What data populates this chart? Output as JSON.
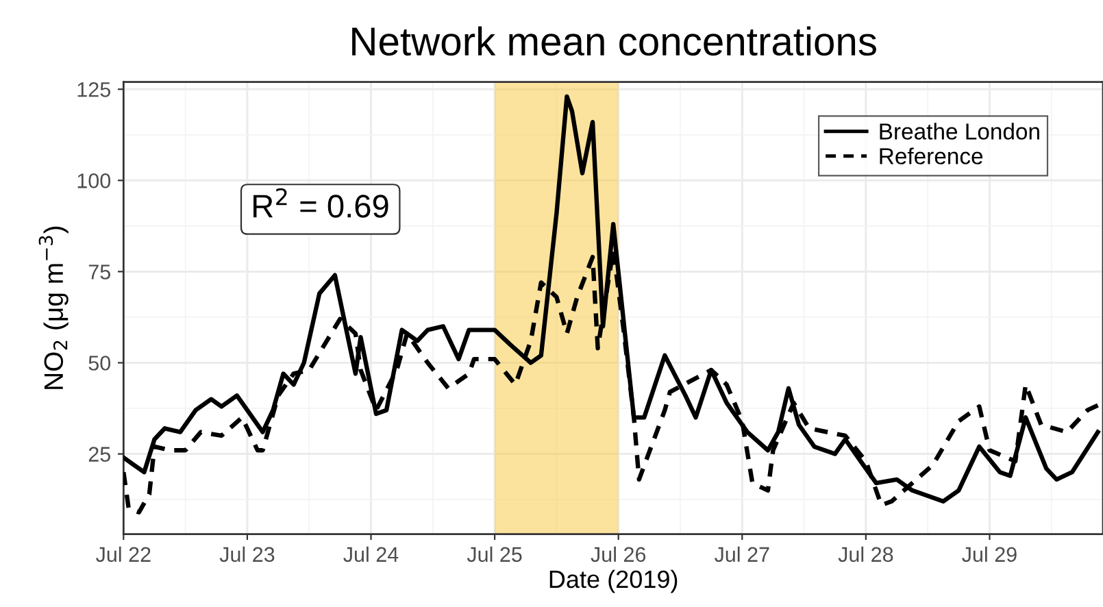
{
  "chart_data": {
    "type": "line",
    "title": "Network mean concentrations",
    "xlabel": "Date (2019)",
    "ylabel": "NO$_{2}$ (μg m$^{−3}$)",
    "annotations": [
      "R$^{2}$ = 0.69"
    ],
    "xlim": [
      "2019-07-22T00:00",
      "2019-07-29T22:00"
    ],
    "xticks": [
      {
        "value": "2019-07-22",
        "label": "Jul 22"
      },
      {
        "value": "2019-07-23",
        "label": "Jul 23"
      },
      {
        "value": "2019-07-24",
        "label": "Jul 24"
      },
      {
        "value": "2019-07-25",
        "label": "Jul 25"
      },
      {
        "value": "2019-07-26",
        "label": "Jul 26"
      },
      {
        "value": "2019-07-27",
        "label": "Jul 27"
      },
      {
        "value": "2019-07-28",
        "label": "Jul 28"
      },
      {
        "value": "2019-07-29",
        "label": "Jul 29"
      }
    ],
    "ylim": [
      3,
      127
    ],
    "yticks": [
      25,
      50,
      75,
      100,
      125
    ],
    "grid": true,
    "legend": "top right",
    "bands": [
      {
        "axis": "x",
        "from": "2019-07-25",
        "to": "2019-07-26",
        "color": "#f8c83c"
      }
    ],
    "series": [
      {
        "name": "Breathe London",
        "color": "#000000",
        "line_style": "solid",
        "x": [
          "2019-07-22T00:00",
          "2019-07-22T02:00",
          "2019-07-22T04:00",
          "2019-07-22T06:00",
          "2019-07-22T08:00",
          "2019-07-22T11:00",
          "2019-07-22T14:00",
          "2019-07-22T17:00",
          "2019-07-22T19:00",
          "2019-07-22T22:00",
          "2019-07-23T00:00",
          "2019-07-23T03:00",
          "2019-07-23T05:00",
          "2019-07-23T07:00",
          "2019-07-23T09:00",
          "2019-07-23T11:00",
          "2019-07-23T14:00",
          "2019-07-23T17:00",
          "2019-07-23T21:00",
          "2019-07-23T22:00",
          "2019-07-24T01:00",
          "2019-07-24T03:00",
          "2019-07-24T06:00",
          "2019-07-24T09:00",
          "2019-07-24T11:00",
          "2019-07-24T14:00",
          "2019-07-24T17:00",
          "2019-07-24T19:00",
          "2019-07-25T00:00",
          "2019-07-25T03:00",
          "2019-07-25T07:00",
          "2019-07-25T09:00",
          "2019-07-25T12:00",
          "2019-07-25T14:00",
          "2019-07-25T15:00",
          "2019-07-25T17:00",
          "2019-07-25T19:00",
          "2019-07-25T21:00",
          "2019-07-25T23:00",
          "2019-07-26T03:00",
          "2019-07-26T05:00",
          "2019-07-26T09:00",
          "2019-07-26T13:00",
          "2019-07-26T15:00",
          "2019-07-26T18:00",
          "2019-07-26T21:00",
          "2019-07-27T01:00",
          "2019-07-27T05:00",
          "2019-07-27T07:00",
          "2019-07-27T09:00",
          "2019-07-27T11:00",
          "2019-07-27T14:00",
          "2019-07-27T18:00",
          "2019-07-27T20:00",
          "2019-07-27T22:00",
          "2019-07-28T02:00",
          "2019-07-28T06:00",
          "2019-07-28T09:00",
          "2019-07-28T15:00",
          "2019-07-28T18:00",
          "2019-07-28T22:00",
          "2019-07-29T02:00",
          "2019-07-29T04:00",
          "2019-07-29T07:00",
          "2019-07-29T11:00",
          "2019-07-29T13:00",
          "2019-07-29T16:00",
          "2019-07-29T21:00"
        ],
        "values": [
          24,
          22,
          20,
          29,
          32,
          31,
          37,
          40,
          38,
          41,
          37,
          31,
          37,
          47,
          44,
          50,
          69,
          74,
          47,
          57,
          36,
          37,
          59,
          56,
          59,
          60,
          51,
          59,
          59,
          55,
          50,
          52,
          91,
          123,
          119,
          102,
          116,
          60,
          88,
          35,
          35,
          52,
          41,
          35,
          48,
          39,
          31,
          26,
          31,
          43,
          33,
          27,
          25,
          29,
          25,
          17,
          18,
          15,
          12,
          15,
          27,
          20,
          19,
          35,
          21,
          18,
          20,
          31
        ]
      },
      {
        "name": "Reference",
        "color": "#000000",
        "line_style": "dashed",
        "x": [
          "2019-07-22T00:00",
          "2019-07-22T01:00",
          "2019-07-22T03:00",
          "2019-07-22T05:00",
          "2019-07-22T06:00",
          "2019-07-22T09:00",
          "2019-07-22T12:00",
          "2019-07-22T15:00",
          "2019-07-22T19:00",
          "2019-07-22T23:00",
          "2019-07-23T02:00",
          "2019-07-23T03:00",
          "2019-07-23T06:00",
          "2019-07-23T09:00",
          "2019-07-23T12:00",
          "2019-07-23T18:00",
          "2019-07-23T21:00",
          "2019-07-23T22:00",
          "2019-07-24T01:00",
          "2019-07-24T05:00",
          "2019-07-24T07:00",
          "2019-07-24T11:00",
          "2019-07-24T15:00",
          "2019-07-24T19:00",
          "2019-07-24T20:00",
          "2019-07-25T00:00",
          "2019-07-25T04:00",
          "2019-07-25T07:00",
          "2019-07-25T09:00",
          "2019-07-25T12:00",
          "2019-07-25T14:00",
          "2019-07-25T16:00",
          "2019-07-25T19:00",
          "2019-07-25T20:00",
          "2019-07-25T23:00",
          "2019-07-26T01:00",
          "2019-07-26T03:00",
          "2019-07-26T04:00",
          "2019-07-26T09:00",
          "2019-07-26T10:00",
          "2019-07-26T18:00",
          "2019-07-26T21:00",
          "2019-07-27T00:00",
          "2019-07-27T02:00",
          "2019-07-27T05:00",
          "2019-07-27T06:00",
          "2019-07-27T10:00",
          "2019-07-27T13:00",
          "2019-07-27T20:00",
          "2019-07-28T00:00",
          "2019-07-28T03:00",
          "2019-07-28T05:00",
          "2019-07-28T09:00",
          "2019-07-28T13:00",
          "2019-07-28T18:00",
          "2019-07-28T22:00",
          "2019-07-29T00:00",
          "2019-07-29T05:00",
          "2019-07-29T07:00",
          "2019-07-29T10:00",
          "2019-07-29T15:00",
          "2019-07-29T19:00",
          "2019-07-29T22:00"
        ],
        "values": [
          20,
          10,
          9,
          14,
          27,
          26,
          26,
          31,
          30,
          35,
          26,
          26,
          41,
          47,
          48,
          62,
          58,
          48,
          37,
          48,
          58,
          50,
          43,
          47,
          51,
          51,
          44,
          56,
          72,
          68,
          58,
          68,
          79,
          54,
          81,
          59,
          35,
          18,
          37,
          42,
          48,
          44,
          34,
          17,
          15,
          26,
          39,
          32,
          30,
          23,
          11,
          12,
          17,
          22,
          34,
          38,
          26,
          23,
          44,
          33,
          31,
          37,
          39
        ]
      }
    ]
  }
}
